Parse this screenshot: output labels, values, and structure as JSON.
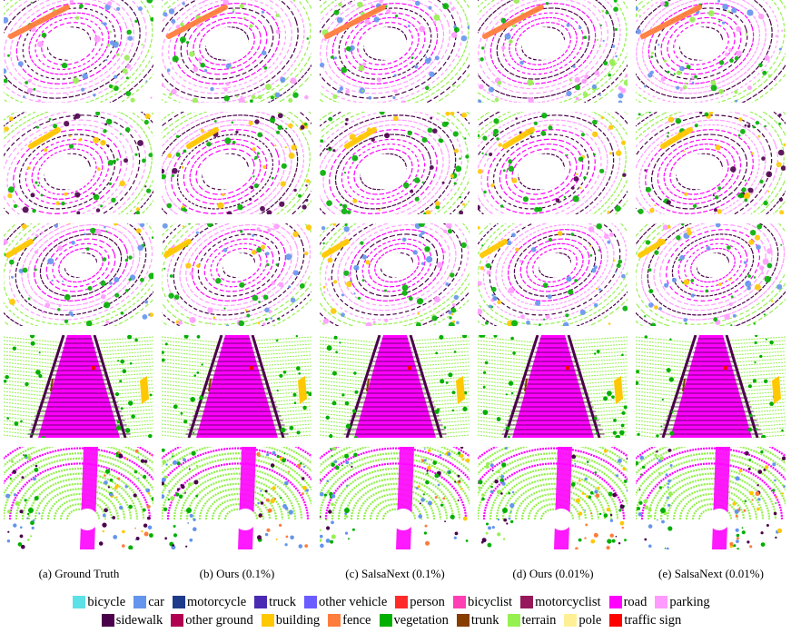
{
  "figure": {
    "rows": 5,
    "columns": [
      {
        "caption": "(a) Ground Truth"
      },
      {
        "caption": "(b) Ours (0.1%)"
      },
      {
        "caption": "(c) SalsaNext (0.1%)"
      },
      {
        "caption": "(d) Ours (0.01%)"
      },
      {
        "caption": "(e) SalsaNext (0.01%)"
      }
    ]
  },
  "legend": {
    "rows": [
      [
        {
          "label": "bicycle",
          "color": "#5ce1e6"
        },
        {
          "label": "car",
          "color": "#6495ed"
        },
        {
          "label": "motorcycle",
          "color": "#1e3a8a"
        },
        {
          "label": "truck",
          "color": "#4b2ab3"
        },
        {
          "label": "other vehicle",
          "color": "#6b5cff"
        },
        {
          "label": "person",
          "color": "#ff2b2b"
        },
        {
          "label": "bicyclist",
          "color": "#ff3fb4"
        },
        {
          "label": "motorcyclist",
          "color": "#96185a"
        },
        {
          "label": "road",
          "color": "#ff00ff"
        },
        {
          "label": "parking",
          "color": "#ff9bff"
        }
      ],
      [
        {
          "label": "sidewalk",
          "color": "#4b004b"
        },
        {
          "label": "other ground",
          "color": "#b00050"
        },
        {
          "label": "building",
          "color": "#ffc800"
        },
        {
          "label": "fence",
          "color": "#ff7d3c"
        },
        {
          "label": "vegetation",
          "color": "#00af00"
        },
        {
          "label": "trunk",
          "color": "#873c00"
        },
        {
          "label": "terrain",
          "color": "#96f050"
        },
        {
          "label": "pole",
          "color": "#fff096"
        },
        {
          "label": "traffic sign",
          "color": "#ff0000"
        }
      ]
    ]
  }
}
